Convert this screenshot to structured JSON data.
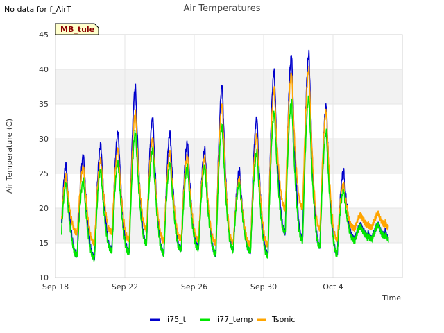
{
  "no_data_note": "No data for f_AirT",
  "site_badge": {
    "label": "MB_tule",
    "bg_color": "#ffffcc",
    "text_color": "#8b0000"
  },
  "chart_data": {
    "type": "line",
    "title": "Air Temperatures",
    "xlabel": "Time",
    "ylabel": "Air Temperature (C)",
    "ylim": [
      10,
      45
    ],
    "xlim_days_from_sep18": [
      0,
      20
    ],
    "yticks": [
      10,
      15,
      20,
      25,
      30,
      35,
      40,
      45
    ],
    "xticks": [
      {
        "day": 0,
        "label": "Sep 18"
      },
      {
        "day": 4,
        "label": "Sep 22"
      },
      {
        "day": 8,
        "label": "Sep 26"
      },
      {
        "day": 12,
        "label": "Sep 30"
      },
      {
        "day": 16,
        "label": "Oct 4"
      }
    ],
    "grid": "alternating horizontal bands",
    "legend_position": "bottom",
    "series": [
      {
        "name": "li75_t",
        "color": "#0000cc",
        "daily_min": [
          12.0,
          13.3,
          13.0,
          14.0,
          13.8,
          15.0,
          13.5,
          14.0,
          14.5,
          13.5,
          14.0,
          13.8,
          13.4,
          16.5,
          15.5,
          14.5,
          13.5,
          15.5,
          15.6
        ],
        "daily_max": [
          26.2,
          27.6,
          29.2,
          31.0,
          37.5,
          33.0,
          30.8,
          29.5,
          28.5,
          37.7,
          25.5,
          33.0,
          39.8,
          42.1,
          42.3,
          34.8,
          25.5
        ]
      },
      {
        "name": "li77_temp",
        "color": "#00e600",
        "daily_min": [
          11.8,
          13.3,
          12.8,
          13.8,
          13.6,
          15.0,
          13.5,
          14.0,
          14.2,
          13.5,
          14.0,
          13.8,
          13.2,
          16.5,
          15.3,
          14.5,
          13.5,
          15.3,
          15.5
        ],
        "daily_max": [
          23.5,
          24.0,
          25.5,
          26.5,
          31.0,
          28.5,
          26.5,
          26.0,
          26.0,
          31.8,
          23.5,
          28.0,
          33.8,
          35.5,
          36.0,
          31.0,
          22.5
        ]
      },
      {
        "name": "Tsonic",
        "color": "#ffa500",
        "daily_min": [
          14.0,
          16.5,
          15.0,
          16.5,
          15.5,
          17.0,
          15.3,
          15.5,
          15.5,
          15.0,
          15.0,
          14.8,
          14.8,
          20.0,
          20.0,
          17.0,
          15.5,
          17.0,
          17.2
        ],
        "daily_max": [
          24.5,
          26.0,
          27.0,
          28.5,
          33.8,
          30.0,
          28.0,
          27.5,
          27.3,
          35.0,
          24.2,
          30.5,
          37.2,
          39.5,
          40.0,
          34.0,
          23.5
        ]
      }
    ]
  }
}
